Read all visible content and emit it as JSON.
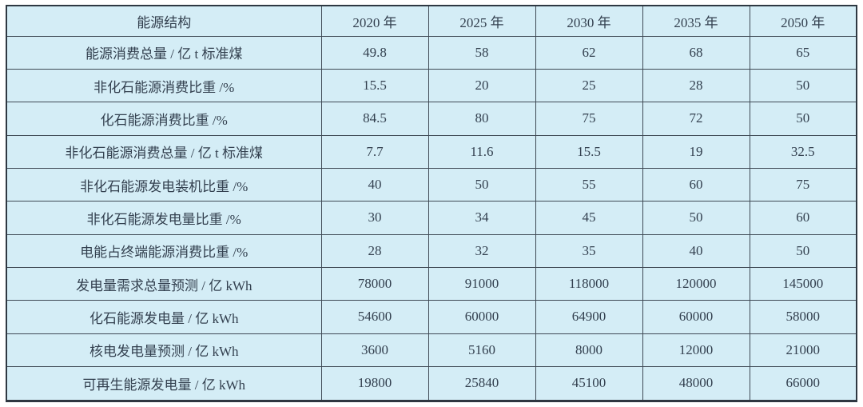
{
  "colors": {
    "page_background": "#ffffff",
    "cell_background": "#d4edf6",
    "grid_line": "#3f4a55",
    "outer_border": "#2e3842",
    "text": "#33404f"
  },
  "chart_data": {
    "type": "table",
    "title": "能源结构",
    "columns": [
      "能源结构",
      "2020 年",
      "2025 年",
      "2030 年",
      "2035 年",
      "2050 年"
    ],
    "rows": [
      {
        "label": "能源消费总量 / 亿 t 标准煤",
        "values": [
          "49.8",
          "58",
          "62",
          "68",
          "65"
        ]
      },
      {
        "label": "非化石能源消费比重 /%",
        "values": [
          "15.5",
          "20",
          "25",
          "28",
          "50"
        ]
      },
      {
        "label": "化石能源消费比重 /%",
        "values": [
          "84.5",
          "80",
          "75",
          "72",
          "50"
        ]
      },
      {
        "label": "非化石能源消费总量 / 亿 t 标准煤",
        "values": [
          "7.7",
          "11.6",
          "15.5",
          "19",
          "32.5"
        ]
      },
      {
        "label": "非化石能源发电装机比重 /%",
        "values": [
          "40",
          "50",
          "55",
          "60",
          "75"
        ]
      },
      {
        "label": "非化石能源发电量比重 /%",
        "values": [
          "30",
          "34",
          "45",
          "50",
          "60"
        ]
      },
      {
        "label": "电能占终端能源消费比重 /%",
        "values": [
          "28",
          "32",
          "35",
          "40",
          "50"
        ]
      },
      {
        "label": "发电量需求总量预测 / 亿 kWh",
        "values": [
          "78000",
          "91000",
          "118000",
          "120000",
          "145000"
        ]
      },
      {
        "label": "化石能源发电量 / 亿 kWh",
        "values": [
          "54600",
          "60000",
          "64900",
          "60000",
          "58000"
        ]
      },
      {
        "label": "核电发电量预测 / 亿 kWh",
        "values": [
          "3600",
          "5160",
          "8000",
          "12000",
          "21000"
        ]
      },
      {
        "label": "可再生能源发电量 / 亿 kWh",
        "values": [
          "19800",
          "25840",
          "45100",
          "48000",
          "66000"
        ]
      }
    ]
  }
}
